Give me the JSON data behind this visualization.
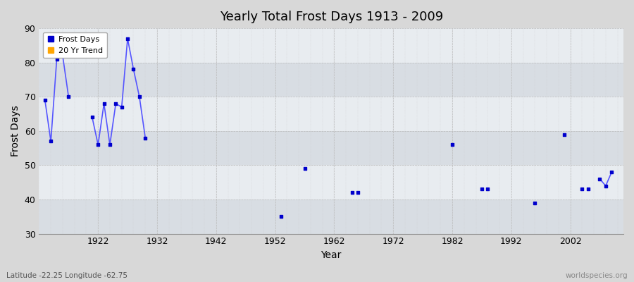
{
  "title": "Yearly Total Frost Days 1913 - 2009",
  "xlabel": "Year",
  "ylabel": "Frost Days",
  "xlim": [
    1912,
    2011
  ],
  "ylim": [
    30,
    90
  ],
  "yticks": [
    30,
    40,
    50,
    60,
    70,
    80,
    90
  ],
  "xticks": [
    1922,
    1932,
    1942,
    1952,
    1962,
    1972,
    1982,
    1992,
    2002
  ],
  "frost_days_data": [
    [
      1913,
      69
    ],
    [
      1914,
      57
    ],
    [
      1915,
      81
    ],
    [
      1916,
      82
    ],
    [
      1917,
      70
    ],
    [
      1921,
      64
    ],
    [
      1922,
      56
    ],
    [
      1923,
      68
    ],
    [
      1924,
      56
    ],
    [
      1925,
      68
    ],
    [
      1926,
      67
    ],
    [
      1927,
      87
    ],
    [
      1928,
      78
    ],
    [
      1929,
      70
    ],
    [
      1930,
      58
    ],
    [
      1953,
      35
    ],
    [
      1957,
      49
    ],
    [
      1965,
      42
    ],
    [
      1966,
      42
    ],
    [
      1982,
      56
    ],
    [
      1987,
      43
    ],
    [
      1988,
      43
    ],
    [
      1996,
      39
    ],
    [
      2001,
      59
    ],
    [
      2004,
      43
    ],
    [
      2005,
      43
    ],
    [
      2007,
      46
    ],
    [
      2008,
      44
    ],
    [
      2009,
      48
    ]
  ],
  "line_segments": [
    [
      [
        1913,
        69
      ],
      [
        1914,
        57
      ],
      [
        1915,
        81
      ],
      [
        1916,
        82
      ],
      [
        1917,
        70
      ]
    ],
    [
      [
        1921,
        64
      ],
      [
        1922,
        56
      ],
      [
        1923,
        68
      ],
      [
        1924,
        56
      ],
      [
        1925,
        68
      ],
      [
        1926,
        67
      ],
      [
        1927,
        87
      ],
      [
        1928,
        78
      ],
      [
        1929,
        70
      ],
      [
        1930,
        58
      ]
    ],
    [
      [
        2007,
        46
      ],
      [
        2008,
        44
      ],
      [
        2009,
        48
      ]
    ]
  ],
  "point_color": "#0000cc",
  "line_color": "#5555ff",
  "bg_color": "#d8d8d8",
  "plot_bg_light": "#ebebeb",
  "plot_bg_dark": "#dcdcdc",
  "grid_color": "#c8c8c8",
  "grid_style": "--",
  "bottom_label": "Latitude -22.25 Longitude -62.75",
  "watermark": "worldspecies.org",
  "legend_frost_color": "#0000cc",
  "legend_trend_color": "#ffa500",
  "band_ranges": [
    [
      30,
      40
    ],
    [
      50,
      60
    ],
    [
      70,
      80
    ],
    [
      90,
      100
    ]
  ],
  "band_color_dark": "#d8dde3",
  "band_color_light": "#e8ecf0"
}
